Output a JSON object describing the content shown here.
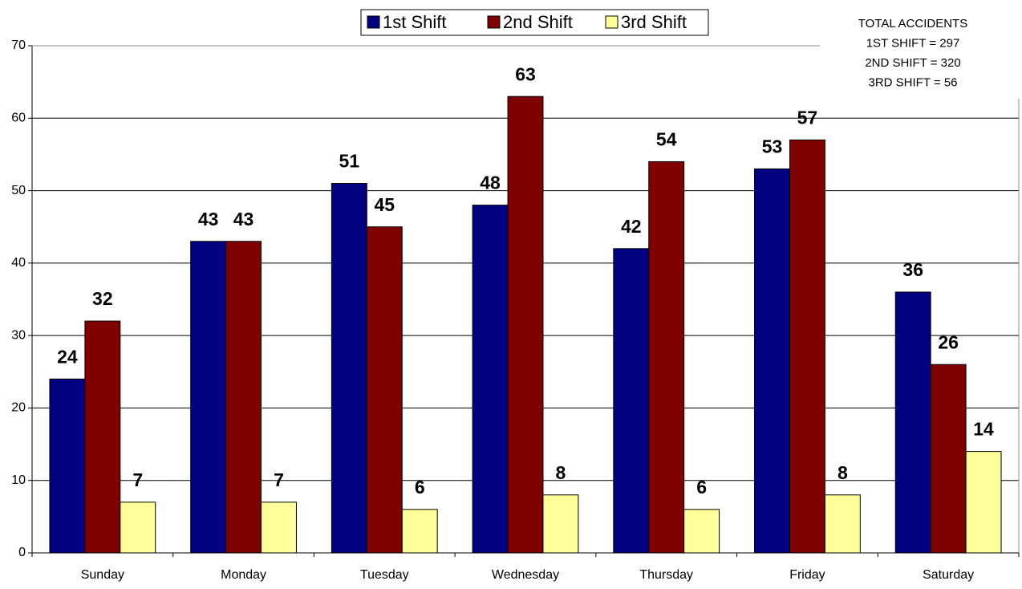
{
  "chart_data": {
    "type": "bar",
    "categories": [
      "Sunday",
      "Monday",
      "Tuesday",
      "Wednesday",
      "Thursday",
      "Friday",
      "Saturday"
    ],
    "series": [
      {
        "name": "1st Shift",
        "color": "#000080",
        "values": [
          24,
          43,
          51,
          48,
          42,
          53,
          36
        ]
      },
      {
        "name": "2nd Shift",
        "color": "#800000",
        "values": [
          32,
          43,
          45,
          63,
          54,
          57,
          26
        ]
      },
      {
        "name": "3rd Shift",
        "color": "#ffff99",
        "values": [
          7,
          7,
          6,
          8,
          6,
          8,
          14
        ]
      }
    ],
    "annotations": [
      "TOTAL ACCIDENTS",
      "1ST SHIFT = 297",
      "2ND SHIFT = 320",
      "3RD SHIFT = 56"
    ],
    "ylim": [
      0,
      70
    ],
    "yticks": [
      0,
      10,
      20,
      30,
      40,
      50,
      60,
      70
    ],
    "grid": true,
    "legend": "top"
  }
}
